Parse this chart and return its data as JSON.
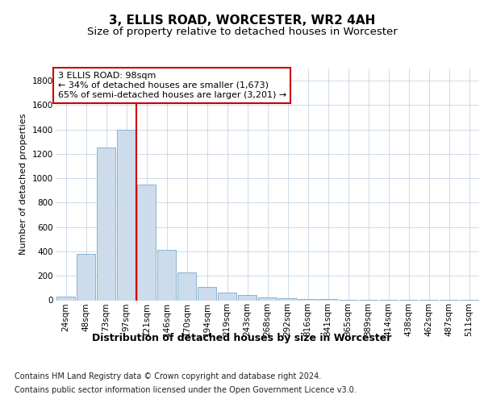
{
  "title": "3, ELLIS ROAD, WORCESTER, WR2 4AH",
  "subtitle": "Size of property relative to detached houses in Worcester",
  "xlabel": "Distribution of detached houses by size in Worcester",
  "ylabel": "Number of detached properties",
  "categories": [
    "24sqm",
    "48sqm",
    "73sqm",
    "97sqm",
    "121sqm",
    "146sqm",
    "170sqm",
    "194sqm",
    "219sqm",
    "243sqm",
    "268sqm",
    "292sqm",
    "316sqm",
    "341sqm",
    "365sqm",
    "389sqm",
    "414sqm",
    "438sqm",
    "462sqm",
    "487sqm",
    "511sqm"
  ],
  "values": [
    30,
    380,
    1250,
    1400,
    950,
    410,
    230,
    110,
    65,
    40,
    20,
    15,
    10,
    8,
    5,
    5,
    2,
    1,
    1,
    1,
    1
  ],
  "bar_color": "#ccdcec",
  "bar_edge_color": "#7aaacc",
  "grid_color": "#bbccdd",
  "annotation_text": "3 ELLIS ROAD: 98sqm\n← 34% of detached houses are smaller (1,673)\n65% of semi-detached houses are larger (3,201) →",
  "annotation_box_color": "#ffffff",
  "annotation_box_edge_color": "#cc0000",
  "vline_x_index": 3.5,
  "vline_color": "#cc0000",
  "ylim": [
    0,
    1900
  ],
  "yticks": [
    0,
    200,
    400,
    600,
    800,
    1000,
    1200,
    1400,
    1600,
    1800
  ],
  "footer_line1": "Contains HM Land Registry data © Crown copyright and database right 2024.",
  "footer_line2": "Contains public sector information licensed under the Open Government Licence v3.0.",
  "background_color": "#ffffff",
  "title_fontsize": 11,
  "subtitle_fontsize": 9.5,
  "xlabel_fontsize": 9,
  "ylabel_fontsize": 8,
  "tick_fontsize": 7.5,
  "annotation_fontsize": 8,
  "footer_fontsize": 7
}
